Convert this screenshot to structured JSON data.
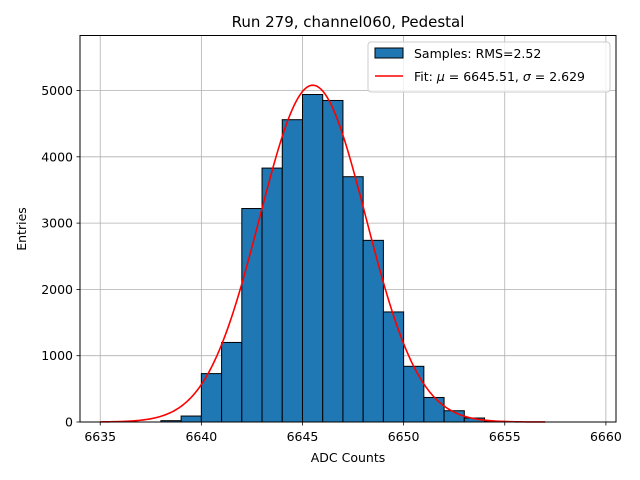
{
  "chart_data": {
    "type": "bar",
    "title": "Run 279, channel060, Pedestal",
    "xlabel": "ADC Counts",
    "ylabel": "Entries",
    "xlim": [
      6634,
      6660.5
    ],
    "ylim": [
      0,
      5830
    ],
    "xticks": [
      6635,
      6640,
      6645,
      6650,
      6655,
      6660
    ],
    "yticks": [
      0,
      1000,
      2000,
      3000,
      4000,
      5000
    ],
    "grid": true,
    "legend_position": "top-right",
    "histogram": {
      "name": "Samples: RMS=2.52",
      "color": "#1f77b4",
      "bin_width": 1,
      "bins": [
        {
          "x0": 6638,
          "count": 20
        },
        {
          "x0": 6639,
          "count": 90
        },
        {
          "x0": 6640,
          "count": 730
        },
        {
          "x0": 6641,
          "count": 1200
        },
        {
          "x0": 6642,
          "count": 3220
        },
        {
          "x0": 6643,
          "count": 3830
        },
        {
          "x0": 6644,
          "count": 4560
        },
        {
          "x0": 6645,
          "count": 4940
        },
        {
          "x0": 6646,
          "count": 4850
        },
        {
          "x0": 6647,
          "count": 3700
        },
        {
          "x0": 6648,
          "count": 2740
        },
        {
          "x0": 6649,
          "count": 1660
        },
        {
          "x0": 6650,
          "count": 840
        },
        {
          "x0": 6651,
          "count": 370
        },
        {
          "x0": 6652,
          "count": 170
        },
        {
          "x0": 6653,
          "count": 60
        },
        {
          "x0": 6654,
          "count": 10
        }
      ]
    },
    "fit": {
      "name": "Fit: μ = 6645.51, σ = 2.629",
      "label_parts": [
        "Fit: ",
        "μ",
        " = 6645.51, ",
        "σ",
        " = 2.629"
      ],
      "color": "#ff0000",
      "mu": 6645.51,
      "sigma": 2.629,
      "amplitude": 5080,
      "x_range": [
        6635,
        6657
      ]
    }
  }
}
